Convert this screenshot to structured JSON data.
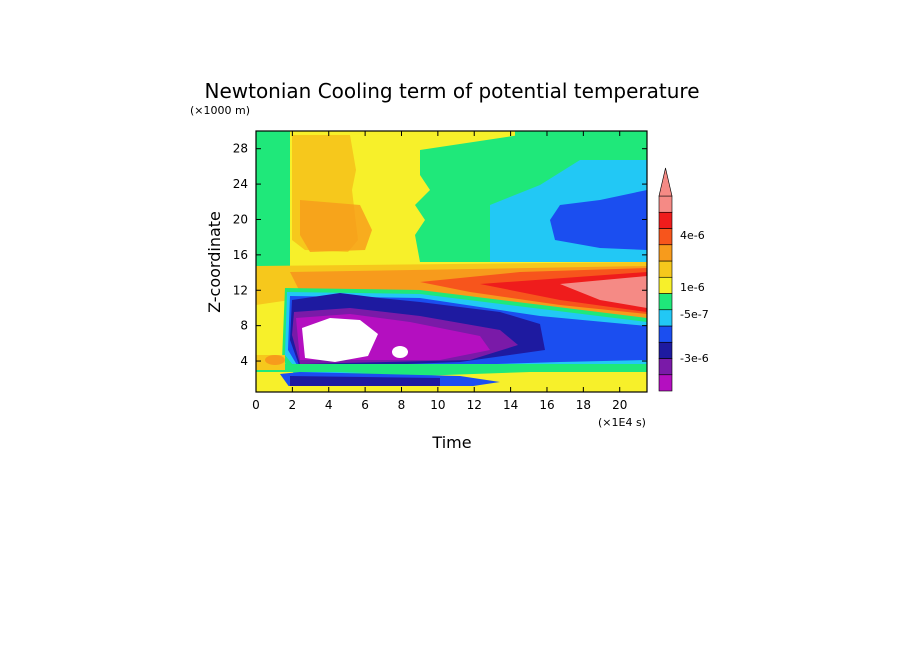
{
  "chart_data": {
    "type": "heatmap",
    "title": "Newtonian Cooling term of potential temperature",
    "xlabel": "Time",
    "ylabel": "Z-coordinate",
    "x_scale_note": "(×1E4 s)",
    "y_scale_note": "(×1000 m)",
    "xlim": [
      0,
      21.5
    ],
    "ylim": [
      0.5,
      30
    ],
    "x_ticks": [
      "0",
      "2",
      "4",
      "6",
      "8",
      "10",
      "12",
      "14",
      "16",
      "18",
      "20"
    ],
    "y_ticks": [
      "4",
      "8",
      "12",
      "16",
      "20",
      "24",
      "28"
    ],
    "colorbar": {
      "colors": [
        "#b40fc0",
        "#7a1aa8",
        "#1e1aa0",
        "#1b4ef0",
        "#22c8f5",
        "#1fe87a",
        "#f7f02a",
        "#f6c81c",
        "#f79b1c",
        "#f7551c",
        "#ef1c1c",
        "#f58a85"
      ],
      "labels": [
        "4e-6",
        "1e-6",
        "-5e-7",
        "-3e-6"
      ],
      "extend": "max"
    },
    "fields": [
      {
        "region": "z < 2 (near surface)",
        "class": "alternating negative / positive bands"
      },
      {
        "region": "t < 1.8, z < 14",
        "class": "yellow / orange (~0 to 1e-6)"
      },
      {
        "region": "t > 2, z 2-12",
        "class": "blue to magenta (negative, min below -4e-6)"
      },
      {
        "region": "z 12-14.5",
        "class": "orange to red (positive, up to >4e-6)"
      },
      {
        "region": "z 14.5-30",
        "class": "yellow / orange early, green to blue late"
      }
    ]
  }
}
